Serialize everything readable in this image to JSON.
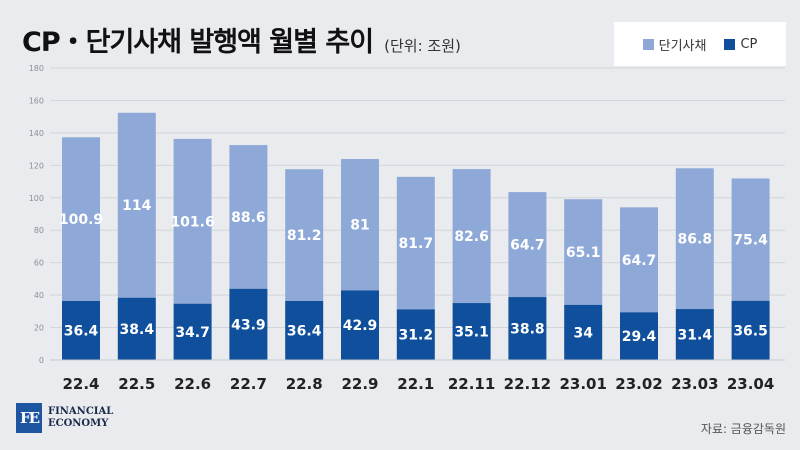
{
  "title": "CP・단기사채 발행액 월별 추이",
  "unit": "(단위: 조원)",
  "source": "자료: 금융감독원",
  "logo": {
    "mark": "FE",
    "line1": "FINANCIAL",
    "line2": "ECONOMY"
  },
  "colors": {
    "stb": "#8ea9d8",
    "cp": "#0f4f9b",
    "background": "#e9ebee"
  },
  "chart_data": {
    "type": "bar",
    "stacked": true,
    "categories": [
      "22.4",
      "22.5",
      "22.6",
      "22.7",
      "22.8",
      "22.9",
      "22.1",
      "22.11",
      "22.12",
      "23.01",
      "23.02",
      "23.03",
      "23.04"
    ],
    "series": [
      {
        "name": "CP",
        "color": "#0f4f9b",
        "values": [
          36.4,
          38.4,
          34.7,
          43.9,
          36.4,
          42.9,
          31.2,
          35.1,
          38.8,
          34,
          29.4,
          31.4,
          36.5
        ]
      },
      {
        "name": "단기사채",
        "color": "#8ea9d8",
        "values": [
          100.9,
          114,
          101.6,
          88.6,
          81.2,
          81,
          81.7,
          82.6,
          64.7,
          65.1,
          64.7,
          86.8,
          75.4
        ]
      }
    ],
    "ylim": [
      0,
      180
    ],
    "yticks": [
      0,
      20,
      40,
      60,
      80,
      100,
      120,
      140,
      160,
      180
    ],
    "grid": true,
    "legend": "top-right"
  },
  "legend": [
    {
      "label": "단기사채",
      "color": "#8ea9d8"
    },
    {
      "label": "CP",
      "color": "#0f4f9b"
    }
  ]
}
